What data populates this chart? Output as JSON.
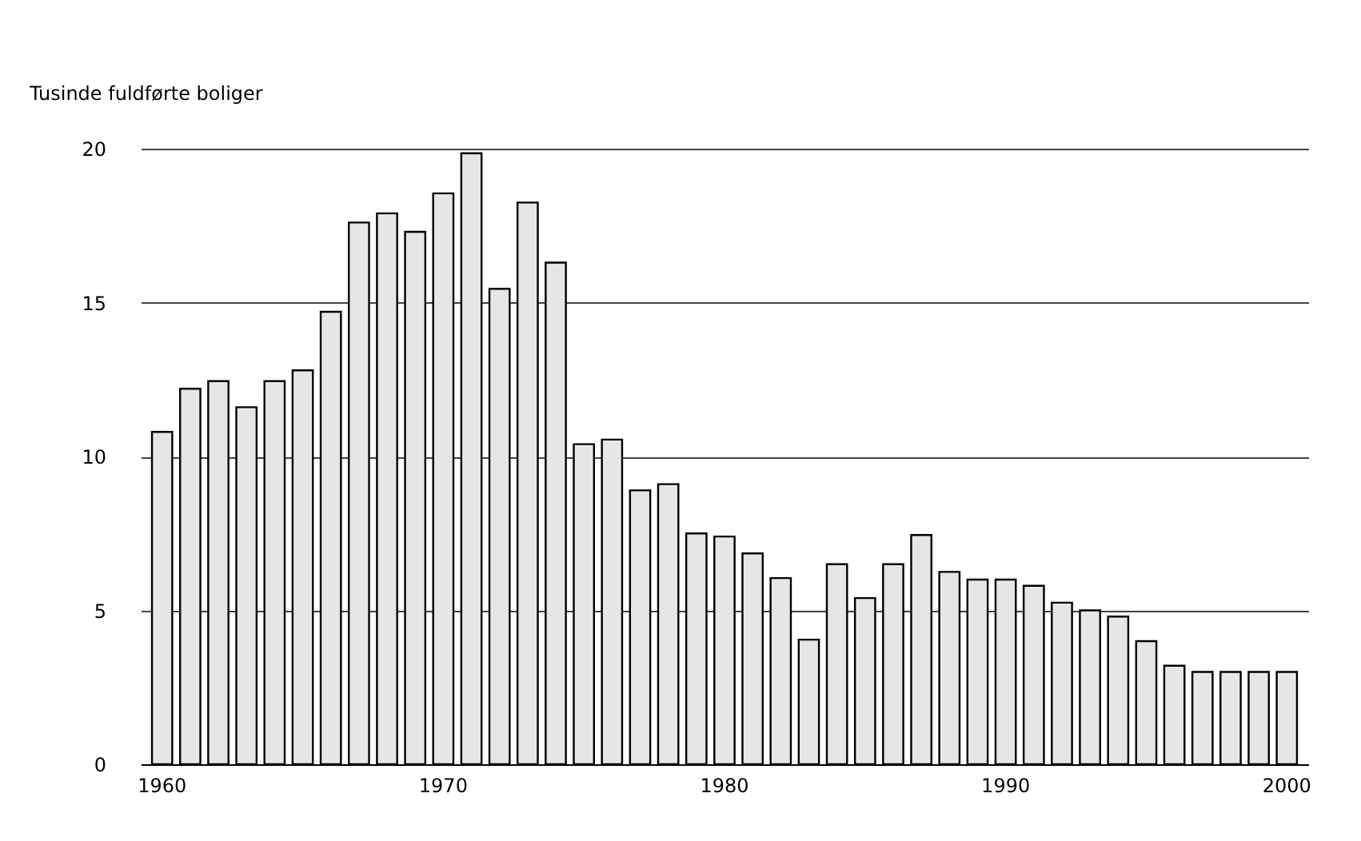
{
  "chart_data": {
    "type": "bar",
    "ylabel": "Tusinde fuldførte boliger",
    "categories": [
      "1960",
      null,
      null,
      null,
      null,
      null,
      null,
      null,
      null,
      null,
      "1970",
      null,
      null,
      null,
      null,
      null,
      null,
      null,
      null,
      null,
      "1980",
      null,
      null,
      null,
      null,
      null,
      null,
      null,
      null,
      null,
      "1990",
      null,
      null,
      null,
      null,
      null,
      null,
      null,
      null,
      null,
      "2000"
    ],
    "values": [
      10.8,
      12.2,
      12.45,
      11.6,
      12.45,
      12.8,
      14.7,
      17.6,
      17.9,
      17.3,
      18.55,
      19.85,
      15.45,
      18.25,
      16.3,
      10.4,
      10.55,
      8.9,
      9.1,
      7.5,
      7.4,
      6.85,
      6.05,
      4.05,
      6.5,
      5.4,
      6.5,
      7.45,
      6.25,
      6.0,
      6.0,
      5.8,
      5.25,
      5.0,
      4.8,
      4.0,
      3.2,
      3.0,
      3.0,
      3.0,
      3.0
    ],
    "color": "#e6e6e6",
    "ylim": [
      0,
      20
    ],
    "yticks": [
      0,
      5,
      10,
      15,
      20
    ],
    "grid": "y"
  }
}
